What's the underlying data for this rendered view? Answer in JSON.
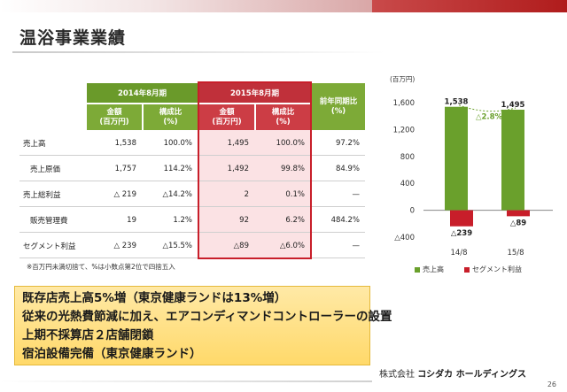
{
  "title": "温浴事業業績",
  "table": {
    "group_2014": "2014年8月期",
    "group_2015": "2015年8月期",
    "yoy_header": "前年同期比\n(%)",
    "sub_amount": "金額\n(百万円)",
    "sub_ratio": "構成比\n(%)",
    "rows": [
      {
        "label": "売上高",
        "a14": "1,538",
        "r14": "100.0%",
        "a15": "1,495",
        "r15": "100.0%",
        "yoy": "97.2%"
      },
      {
        "label": "売上原価",
        "a14": "1,757",
        "r14": "114.2%",
        "a15": "1,492",
        "r15": "99.8%",
        "yoy": "84.9%"
      },
      {
        "label": "売上総利益",
        "a14": "△ 219",
        "r14": "△14.2%",
        "a15": "2",
        "r15": "0.1%",
        "yoy": "—"
      },
      {
        "label": "販売管理費",
        "a14": "19",
        "r14": "1.2%",
        "a15": "92",
        "r15": "6.2%",
        "yoy": "484.2%"
      },
      {
        "label": "セグメント利益",
        "a14": "△ 239",
        "r14": "△15.5%",
        "a15": "△89",
        "r15": "△6.0%",
        "yoy": "—"
      }
    ],
    "note": "※百万円未満切捨て、%は小数点第2位で四捨五入"
  },
  "chart_data": {
    "type": "bar",
    "unit": "(百万円)",
    "categories": [
      "14/8",
      "15/8"
    ],
    "series": [
      {
        "name": "売上高",
        "values": [
          1538,
          1495
        ],
        "color": "#6aa02c"
      },
      {
        "name": "セグメント利益",
        "values": [
          -239,
          -89
        ],
        "color": "#c81e2a"
      }
    ],
    "ylim": [
      -400,
      1600
    ],
    "yticks": [
      1600,
      1200,
      800,
      400,
      0,
      -400
    ],
    "ytick_labels": [
      "1,600",
      "1,200",
      "800",
      "400",
      "0",
      "△400"
    ],
    "value_labels": [
      [
        "1,538",
        "1,495"
      ],
      [
        "△239",
        "△89"
      ]
    ],
    "annotation": "△2.8%",
    "legend_position": "bottom"
  },
  "message": [
    "既存店売上高5%増（東京健康ランドは13%増）",
    "従来の光熱費節減に加え、エアコンディマンドコントローラーの設置",
    "上期不採算店２店舗閉鎖",
    "宿泊設備完備（東京健康ランド）"
  ],
  "logo": {
    "prefix": "株式会社",
    "name": "コシダカ ホールディングス"
  },
  "page_number": "26"
}
